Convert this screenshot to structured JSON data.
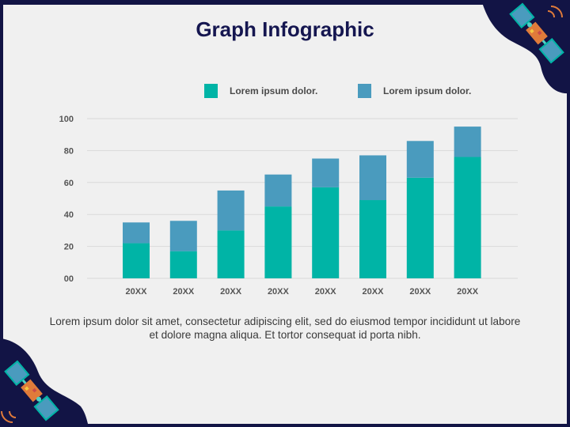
{
  "title": "Graph Infographic",
  "legend": [
    {
      "label": "Lorem ipsum dolor.",
      "color": "#00b4a6"
    },
    {
      "label": "Lorem ipsum dolor.",
      "color": "#4a9bbe"
    }
  ],
  "body_text": "Lorem ipsum dolor sit amet, consectetur adipiscing elit, sed do eiusmod tempor incididunt ut labore et dolore magna aliqua. Et tortor consequat id porta nibh.",
  "colors": {
    "background": "#f0f0f0",
    "frame": "#121445",
    "title": "#151650",
    "grid": "#d9d9d9"
  },
  "decorations": [
    "satellite-icon",
    "satellite-icon"
  ],
  "chart_data": {
    "type": "bar",
    "stacked": true,
    "categories": [
      "20XX",
      "20XX",
      "20XX",
      "20XX",
      "20XX",
      "20XX",
      "20XX",
      "20XX"
    ],
    "series": [
      {
        "values": [
          22,
          17,
          30,
          45,
          57,
          49,
          63,
          76
        ],
        "color": "#00b4a6"
      },
      {
        "values": [
          13,
          19,
          25,
          20,
          18,
          28,
          23,
          19
        ],
        "color": "#4a9bbe"
      }
    ],
    "yticks": [
      "00",
      "20",
      "40",
      "60",
      "80",
      "100"
    ],
    "ylim": [
      0,
      100
    ],
    "grid": true,
    "legend_position": "top"
  }
}
